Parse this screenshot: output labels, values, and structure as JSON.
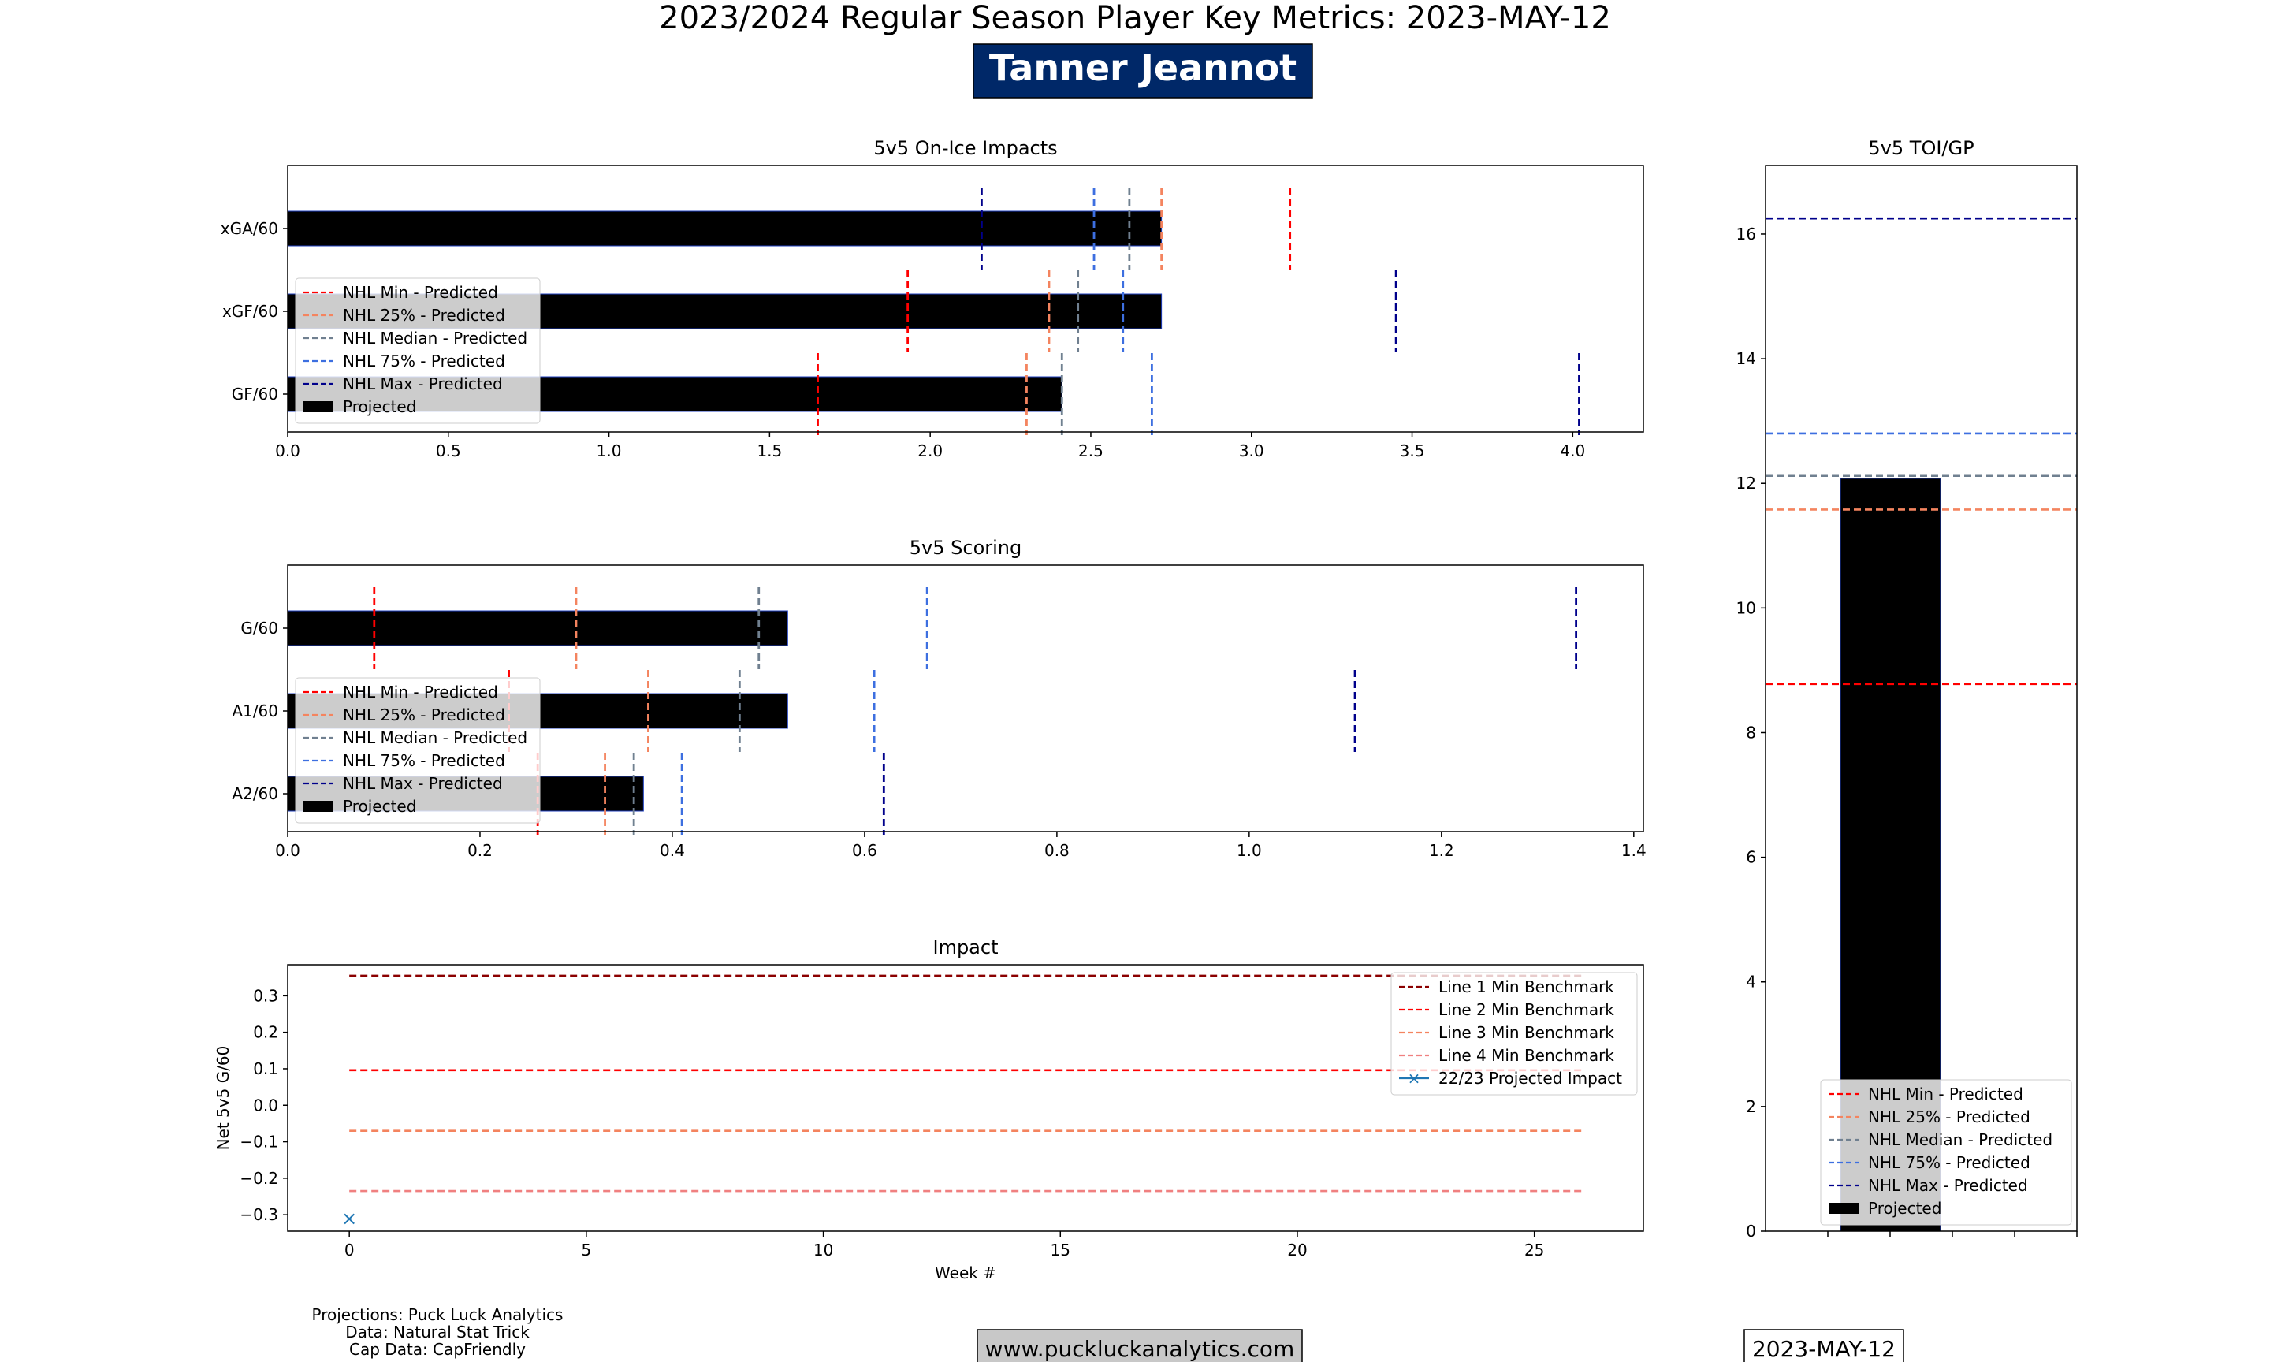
{
  "header": {
    "title": "2023/2024 Regular Season Player Key Metrics: 2023-MAY-12",
    "player_name": "Tanner Jeannot",
    "player_box_color": "#002868"
  },
  "footer": {
    "credits": [
      "Projections: Puck Luck Analytics",
      "Data: Natural Stat Trick",
      "Cap Data: CapFriendly"
    ],
    "website": "www.puckluckanalytics.com",
    "date": "2023-MAY-12"
  },
  "benchmark_styles": [
    {
      "name": "NHL Min - Predicted",
      "color": "#ff0000"
    },
    {
      "name": "NHL 25% - Predicted",
      "color": "#f4845f"
    },
    {
      "name": "NHL Median - Predicted",
      "color": "#708090"
    },
    {
      "name": "NHL 75% - Predicted",
      "color": "#3d6fe0"
    },
    {
      "name": "NHL Max - Predicted",
      "color": "#00008b"
    }
  ],
  "projected_label": "Projected",
  "chart_data": [
    {
      "id": "onice",
      "type": "bar",
      "orientation": "horizontal",
      "title": "5v5 On-Ice Impacts",
      "categories": [
        "xGA/60",
        "xGF/60",
        "GF/60"
      ],
      "values": [
        2.72,
        2.72,
        2.41
      ],
      "xlim": [
        0,
        4.22
      ],
      "xticks": [
        "0.0",
        "0.5",
        "1.0",
        "1.5",
        "2.0",
        "2.5",
        "3.0",
        "3.5",
        "4.0"
      ],
      "legend": "center-left",
      "benchmarks": [
        [
          3.12,
          2.72,
          2.62,
          2.51,
          2.16
        ],
        [
          1.93,
          2.37,
          2.46,
          2.6,
          3.45
        ],
        [
          1.65,
          2.3,
          2.41,
          2.69,
          4.02
        ]
      ]
    },
    {
      "id": "scoring",
      "type": "bar",
      "orientation": "horizontal",
      "title": "5v5 Scoring",
      "categories": [
        "G/60",
        "A1/60",
        "A2/60"
      ],
      "values": [
        0.52,
        0.52,
        0.37
      ],
      "xlim": [
        0,
        1.41
      ],
      "xticks": [
        "0.0",
        "0.2",
        "0.4",
        "0.6",
        "0.8",
        "1.0",
        "1.2",
        "1.4"
      ],
      "legend": "center-left",
      "benchmarks": [
        [
          0.09,
          0.3,
          0.49,
          0.665,
          1.34
        ],
        [
          0.23,
          0.375,
          0.47,
          0.61,
          1.11
        ],
        [
          0.26,
          0.33,
          0.36,
          0.41,
          0.62
        ]
      ]
    },
    {
      "id": "impact",
      "type": "line",
      "title": "Impact",
      "xlabel": "Week #",
      "ylabel": "Net 5v5 G/60",
      "xlim": [
        -1.3,
        27.3
      ],
      "ylim": [
        -0.345,
        0.385
      ],
      "xticks": [
        0,
        5,
        10,
        15,
        20,
        25
      ],
      "yticks": [
        "-0.3",
        "-0.2",
        "-0.1",
        "0.0",
        "0.1",
        "0.2",
        "0.3"
      ],
      "legend": "top-right",
      "series": [
        {
          "name": "Line 1 Min Benchmark",
          "color": "#8b0000",
          "x": [
            0,
            26
          ],
          "y": [
            0.355,
            0.355
          ],
          "style": "dashed"
        },
        {
          "name": "Line 2 Min Benchmark",
          "color": "#ff0000",
          "x": [
            0,
            26
          ],
          "y": [
            0.096,
            0.096
          ],
          "style": "dashed"
        },
        {
          "name": "Line 3 Min Benchmark",
          "color": "#f4845f",
          "x": [
            0,
            26
          ],
          "y": [
            -0.07,
            -0.07
          ],
          "style": "dashed"
        },
        {
          "name": "Line 4 Min Benchmark",
          "color": "#f08080",
          "x": [
            0,
            26
          ],
          "y": [
            -0.235,
            -0.235
          ],
          "style": "dashed"
        },
        {
          "name": "22/23 Projected Impact",
          "color": "#1f77b4",
          "x": [
            0
          ],
          "y": [
            -0.31
          ],
          "style": "marker-x"
        }
      ]
    },
    {
      "id": "toi",
      "type": "bar",
      "orientation": "vertical",
      "title": "5v5 TOI/GP",
      "value": 12.08,
      "ylim": [
        0,
        17.1
      ],
      "yticks": [
        0,
        2,
        4,
        6,
        8,
        10,
        12,
        14,
        16
      ],
      "legend": "bottom-left",
      "benchmarks": [
        8.78,
        11.58,
        12.12,
        12.8,
        16.25
      ]
    }
  ]
}
